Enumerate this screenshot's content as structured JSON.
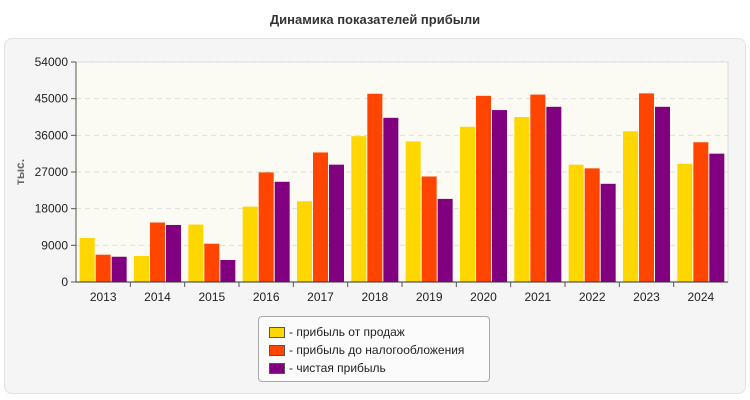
{
  "chart_data": {
    "type": "bar",
    "title": "Динамика показателей прибыли",
    "ylabel": "тыс.",
    "xlabel": "",
    "categories": [
      "2013",
      "2014",
      "2015",
      "2016",
      "2017",
      "2018",
      "2019",
      "2020",
      "2021",
      "2022",
      "2023",
      "2024"
    ],
    "ylim": [
      0,
      54000
    ],
    "yticks": [
      0,
      9000,
      18000,
      27000,
      36000,
      45000,
      54000
    ],
    "grid": true,
    "legend_position": "bottom",
    "series": [
      {
        "name": "- прибыль от продаж",
        "color": "#FFD700",
        "values": [
          10800,
          6400,
          14100,
          18500,
          19800,
          35800,
          34500,
          38100,
          40500,
          28800,
          37000,
          29000
        ]
      },
      {
        "name": "- прибыль до налогообложения",
        "color": "#FF4500",
        "values": [
          6700,
          14600,
          9400,
          26900,
          31800,
          46200,
          25900,
          45700,
          46000,
          27900,
          46300,
          34300
        ]
      },
      {
        "name": "- чистая прибыль",
        "color": "#800080",
        "values": [
          6200,
          14000,
          5400,
          24600,
          28800,
          40300,
          20400,
          42200,
          43000,
          24100,
          43000,
          31500
        ]
      }
    ]
  }
}
